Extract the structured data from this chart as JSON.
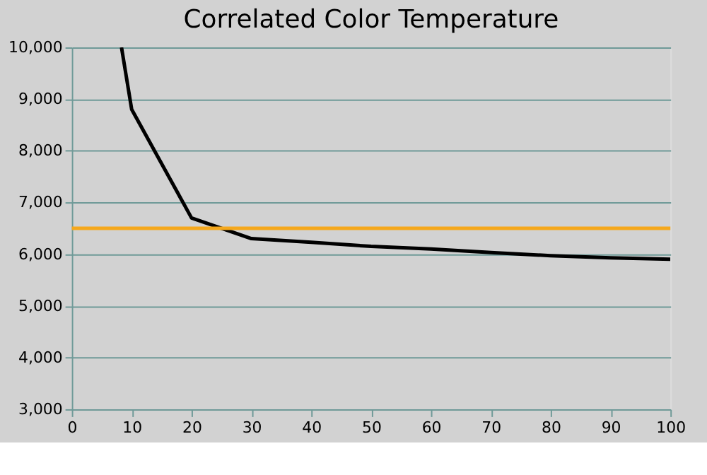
{
  "chart_data": {
    "type": "line",
    "title": "Correlated Color Temperature",
    "x": [
      8.3,
      10,
      20,
      30,
      40,
      50,
      60,
      70,
      80,
      90,
      100
    ],
    "series": [
      {
        "color": "#000000",
        "values": [
          10000,
          8800,
          6700,
          6300,
          6230,
          6150,
          6100,
          6030,
          5970,
          5930,
          5900
        ]
      }
    ],
    "xlim": [
      0,
      100
    ],
    "xticks": [
      0,
      10,
      20,
      30,
      40,
      50,
      60,
      70,
      80,
      90,
      100
    ],
    "ylim": [
      3000,
      10000
    ],
    "yticks": [
      {
        "value": 3000,
        "label": "3,000"
      },
      {
        "value": 4000,
        "label": "4,000"
      },
      {
        "value": 5000,
        "label": "5,000"
      },
      {
        "value": 6000,
        "label": "6,000"
      },
      {
        "value": 7000,
        "label": "7,000"
      },
      {
        "value": 8000,
        "label": "8,000"
      },
      {
        "value": 9000,
        "label": "9,000"
      },
      {
        "value": 10000,
        "label": "10,000"
      }
    ],
    "ref_lines": [
      {
        "axis": "y",
        "value": 6500,
        "color": "#f5a81c"
      }
    ],
    "grid": "y",
    "marker": "none",
    "line_style": "solid"
  }
}
